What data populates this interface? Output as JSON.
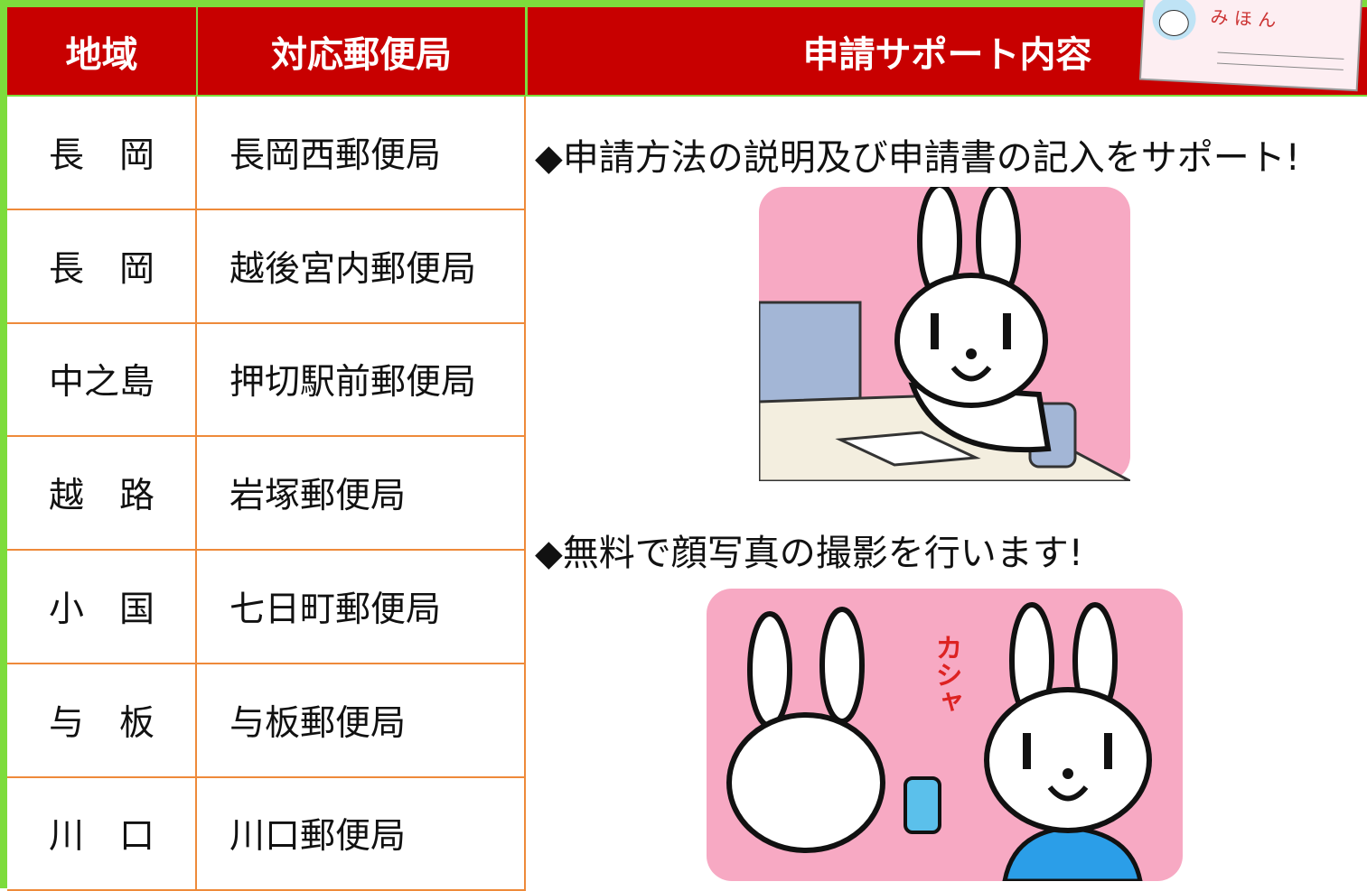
{
  "table": {
    "header": [
      "地域",
      "対応郵便局",
      "申請サポート内容"
    ],
    "rows": [
      [
        "長　岡",
        "長岡西郵便局"
      ],
      [
        "長　岡",
        "越後宮内郵便局"
      ],
      [
        "中之島",
        "押切駅前郵便局"
      ],
      [
        "越　路",
        "岩塚郵便局"
      ],
      [
        "小　国",
        "七日町郵便局"
      ],
      [
        "与　板",
        "与板郵便局"
      ],
      [
        "川　口",
        "川口郵便局"
      ]
    ]
  },
  "support": {
    "items": [
      "◆申請方法の説明及び申請書の記入をサポート!",
      "◆無料で顔写真の撮影を行います!"
    ],
    "sound": "カシャ"
  },
  "card": {
    "label": "み ほ ん"
  }
}
